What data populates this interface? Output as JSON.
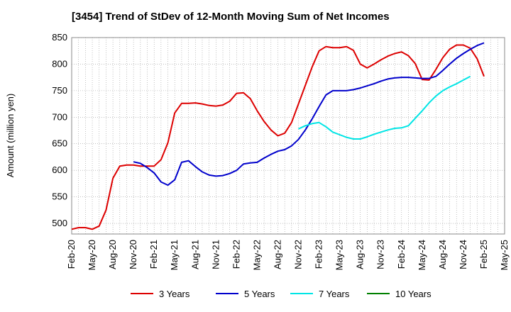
{
  "chart_data": {
    "type": "line",
    "title": "[3454]  Trend of StDev of 12-Month Moving Sum of Net Incomes",
    "ylabel": "Amount (million yen)",
    "xlabel": "",
    "ylim": [
      480,
      850
    ],
    "yticks": [
      500,
      550,
      600,
      650,
      700,
      750,
      800,
      850
    ],
    "x_start": "Feb-20",
    "x_ticks": [
      "Feb-20",
      "May-20",
      "Aug-20",
      "Nov-20",
      "Feb-21",
      "May-21",
      "Aug-21",
      "Nov-21",
      "Feb-22",
      "May-22",
      "Aug-22",
      "Nov-22",
      "Feb-23",
      "May-23",
      "Aug-23",
      "Nov-23",
      "Feb-24",
      "May-24",
      "Aug-24",
      "Nov-24",
      "Feb-25",
      "May-25"
    ],
    "grid": true,
    "legend_position": "bottom",
    "series": [
      {
        "name": "3 Years",
        "color": "#dd0000",
        "start_month_index": 0,
        "values": [
          489,
          492,
          492,
          489,
          495,
          525,
          585,
          608,
          610,
          610,
          608,
          608,
          608,
          620,
          652,
          708,
          726,
          726,
          727,
          725,
          722,
          721,
          723,
          730,
          745,
          746,
          735,
          712,
          692,
          676,
          665,
          670,
          690,
          725,
          760,
          795,
          825,
          833,
          831,
          831,
          833,
          826,
          800,
          793,
          800,
          808,
          815,
          820,
          823,
          816,
          801,
          771,
          770,
          790,
          812,
          828,
          836,
          836,
          830,
          810,
          777
        ]
      },
      {
        "name": "5 Years",
        "color": "#0000cc",
        "start_month_index": 9,
        "values": [
          616,
          613,
          605,
          595,
          578,
          572,
          582,
          615,
          618,
          607,
          597,
          591,
          589,
          590,
          594,
          600,
          612,
          614,
          615,
          623,
          630,
          636,
          639,
          646,
          658,
          676,
          697,
          720,
          742,
          750,
          750,
          750,
          752,
          755,
          759,
          763,
          768,
          772,
          774,
          775,
          775,
          774,
          773,
          773,
          777,
          788,
          800,
          811,
          820,
          828,
          835,
          840
        ]
      },
      {
        "name": "7 Years",
        "color": "#00e5e5",
        "start_month_index": 33,
        "values": [
          678,
          684,
          688,
          690,
          682,
          672,
          667,
          662,
          659,
          659,
          663,
          668,
          672,
          676,
          679,
          680,
          684,
          698,
          712,
          727,
          740,
          750,
          757,
          763,
          770,
          777
        ]
      },
      {
        "name": "10 Years",
        "color": "#008000",
        "start_month_index": 0,
        "values": []
      }
    ]
  }
}
